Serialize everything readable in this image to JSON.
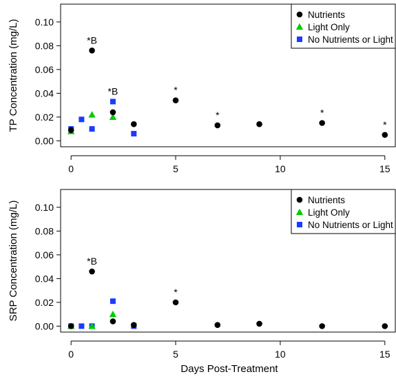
{
  "chart_data": [
    {
      "type": "scatter",
      "ylabel": "TP Concentration (mg/L)",
      "xlabel": "",
      "xlim": [
        -0.5,
        15.5
      ],
      "ylim": [
        -0.005,
        0.115
      ],
      "xticks": [
        0,
        5,
        10,
        15
      ],
      "yticks": [
        0.0,
        0.02,
        0.04,
        0.06,
        0.08,
        0.1
      ],
      "ytick_labels": [
        "0.00",
        "0.02",
        "0.04",
        "0.06",
        "0.08",
        "0.10"
      ],
      "grid": false,
      "legend_position": "top-right",
      "series": [
        {
          "name": "Nutrients",
          "marker": "circle",
          "color": "#000000",
          "x": [
            0,
            1,
            2,
            3,
            5,
            7,
            9,
            12,
            15
          ],
          "y": [
            0.009,
            0.076,
            0.024,
            0.014,
            0.034,
            0.013,
            0.014,
            0.015,
            0.005
          ]
        },
        {
          "name": "Light Only",
          "marker": "triangle",
          "color": "#00cc00",
          "x": [
            0,
            1,
            2
          ],
          "y": [
            0.008,
            0.022,
            0.02
          ]
        },
        {
          "name": "No Nutrients or Light",
          "marker": "square",
          "color": "#1a3cff",
          "x": [
            0,
            0.5,
            1,
            2,
            3
          ],
          "y": [
            0.01,
            0.018,
            0.01,
            0.033,
            0.006
          ]
        }
      ],
      "annotations": [
        {
          "text": "*B",
          "x": 1,
          "y": 0.076
        },
        {
          "text": "*B",
          "x": 2,
          "y": 0.033
        },
        {
          "text": "*",
          "x": 5,
          "y": 0.034
        },
        {
          "text": "*",
          "x": 7,
          "y": 0.013
        },
        {
          "text": "*",
          "x": 12,
          "y": 0.015
        },
        {
          "text": "*",
          "x": 15,
          "y": 0.005
        }
      ]
    },
    {
      "type": "scatter",
      "ylabel": "SRP Concentration (mg/L)",
      "xlabel": "Days Post-Treatment",
      "xlim": [
        -0.5,
        15.5
      ],
      "ylim": [
        -0.005,
        0.115
      ],
      "xticks": [
        0,
        5,
        10,
        15
      ],
      "yticks": [
        0.0,
        0.02,
        0.04,
        0.06,
        0.08,
        0.1
      ],
      "ytick_labels": [
        "0.00",
        "0.02",
        "0.04",
        "0.06",
        "0.08",
        "0.10"
      ],
      "grid": false,
      "legend_position": "top-right",
      "series": [
        {
          "name": "Nutrients",
          "marker": "circle",
          "color": "#000000",
          "x": [
            0,
            1,
            2,
            3,
            5,
            7,
            9,
            12,
            15
          ],
          "y": [
            0.0,
            0.046,
            0.004,
            0.001,
            0.02,
            0.001,
            0.002,
            0.0,
            0.0
          ]
        },
        {
          "name": "Light Only",
          "marker": "triangle",
          "color": "#00cc00",
          "x": [
            0,
            1,
            2
          ],
          "y": [
            0.0,
            0.0,
            0.01
          ]
        },
        {
          "name": "No Nutrients or Light",
          "marker": "square",
          "color": "#1a3cff",
          "x": [
            0,
            0.5,
            1,
            2,
            3
          ],
          "y": [
            0.0,
            0.0,
            0.0,
            0.021,
            0.0
          ]
        }
      ],
      "annotations": [
        {
          "text": "*B",
          "x": 1,
          "y": 0.046
        },
        {
          "text": "*",
          "x": 5,
          "y": 0.02
        }
      ]
    }
  ]
}
